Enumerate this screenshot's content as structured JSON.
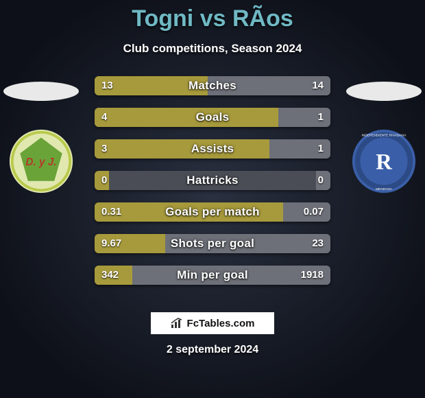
{
  "title_color": "#6fb9c4",
  "title": "Togni vs RÃ­os",
  "subtitle": "Club competitions, Season 2024",
  "left_team": {
    "ellipse_color": "#e9e9e9",
    "crest_bg": "#e0e8b0",
    "crest_ring": "#b9c94a",
    "crest_inner": "#6aa338",
    "crest_text": "D. y J.",
    "crest_text_color": "#b53a2a"
  },
  "right_team": {
    "ellipse_color": "#e9e9e9",
    "crest_bg": "#3a5fa8",
    "crest_ring": "#ffffff",
    "crest_inner": "#3a5fa8",
    "crest_text": "R",
    "crest_text_color": "#ffffff",
    "crest_sub": "INDEPENDIENTE RIVADAVIA",
    "crest_sub2": "MENDOZA"
  },
  "bar_colors": {
    "left": "#a79a3c",
    "right": "#6d7078",
    "track": "#4a4d55"
  },
  "stats": [
    {
      "label": "Matches",
      "lv": "13",
      "rv": "14",
      "lw": 48,
      "rw": 52
    },
    {
      "label": "Goals",
      "lv": "4",
      "rv": "1",
      "lw": 78,
      "rw": 22
    },
    {
      "label": "Assists",
      "lv": "3",
      "rv": "1",
      "lw": 74,
      "rw": 26
    },
    {
      "label": "Hattricks",
      "lv": "0",
      "rv": "0",
      "lw": 6,
      "rw": 6
    },
    {
      "label": "Goals per match",
      "lv": "0.31",
      "rv": "0.07",
      "lw": 80,
      "rw": 20
    },
    {
      "label": "Shots per goal",
      "lv": "9.67",
      "rv": "23",
      "lw": 30,
      "rw": 70
    },
    {
      "label": "Min per goal",
      "lv": "342",
      "rv": "1918",
      "lw": 16,
      "rw": 84
    }
  ],
  "branding": "FcTables.com",
  "date": "2 september 2024"
}
